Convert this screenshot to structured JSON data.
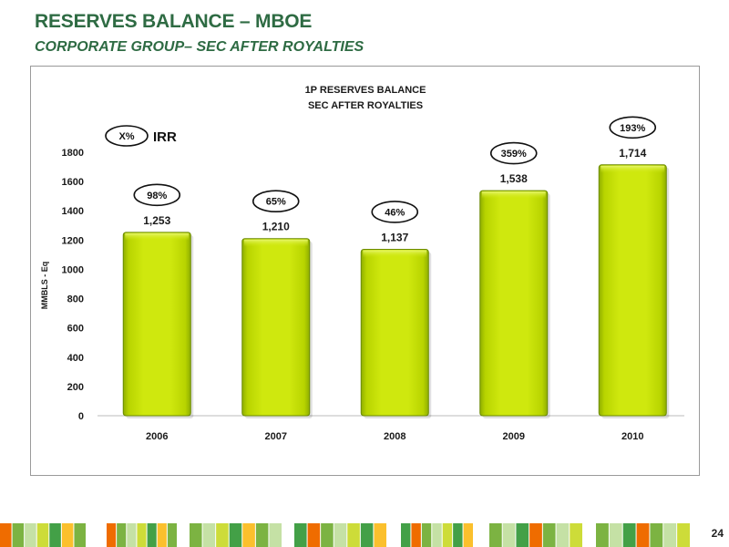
{
  "slide": {
    "title": "RESERVES BALANCE – MBOE",
    "subtitle": "CORPORATE GROUP– SEC AFTER ROYALTIES",
    "page_number": "24"
  },
  "legend": {
    "marker_label": "X%",
    "label": "IRR"
  },
  "colors": {
    "title_green": "#2e6b43",
    "bar_fill": "#c7e00a",
    "bar_border": "#6b8a00",
    "strip_colors": [
      "#7cb342",
      "#cddc39",
      "#ef6c00",
      "#fbc02d",
      "#c5e1a5",
      "#43a047"
    ]
  },
  "chart_data": {
    "type": "bar",
    "title": "1P RESERVES BALANCE",
    "subtitle": "SEC AFTER ROYALTIES",
    "ylabel": "MMBLS - Eq",
    "xlabel": "",
    "ylim": [
      0,
      1800
    ],
    "yticks": [
      0,
      200,
      400,
      600,
      800,
      1000,
      1200,
      1400,
      1600,
      1800
    ],
    "grid": false,
    "categories": [
      "2006",
      "2007",
      "2008",
      "2009",
      "2010"
    ],
    "values": [
      1253,
      1210,
      1137,
      1538,
      1714
    ],
    "value_labels": [
      "1,253",
      "1,210",
      "1,137",
      "1,538",
      "1,714"
    ],
    "irr_labels": [
      "98%",
      "65%",
      "46%",
      "359%",
      "193%"
    ]
  }
}
